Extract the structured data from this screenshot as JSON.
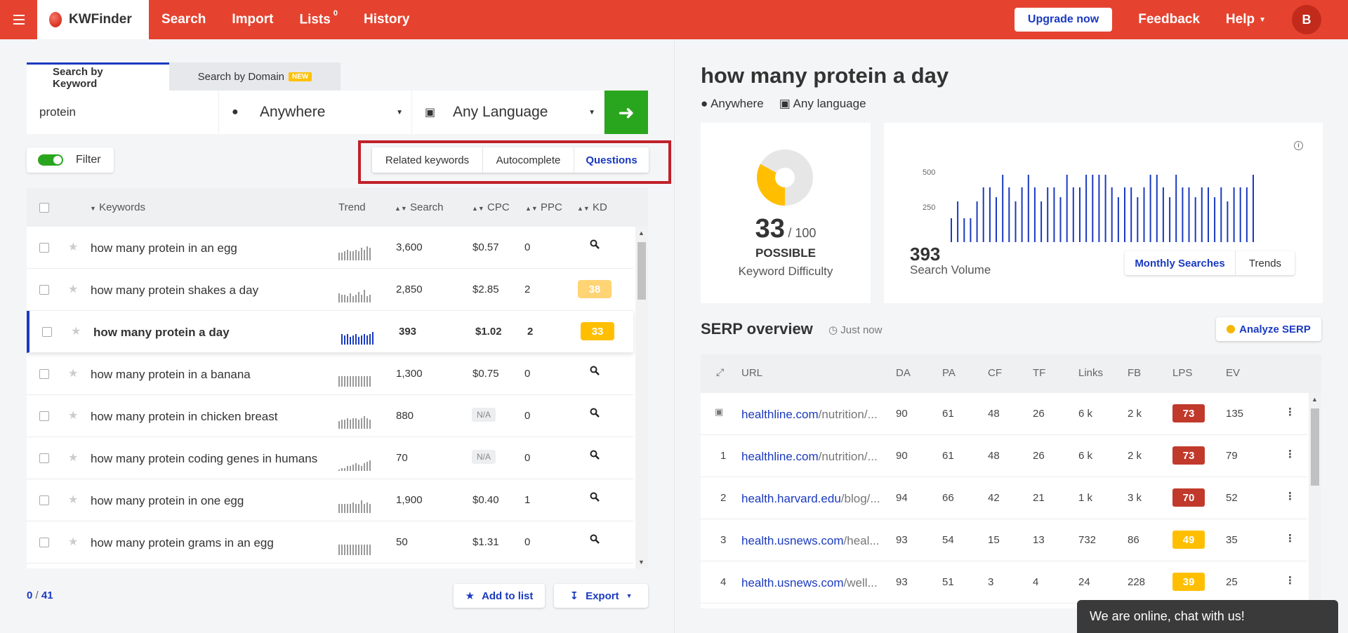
{
  "topbar": {
    "brand": "KWFinder",
    "nav": [
      {
        "label": "Search"
      },
      {
        "label": "Import"
      },
      {
        "label": "Lists",
        "badge": "0"
      },
      {
        "label": "History"
      }
    ],
    "upgrade": "Upgrade now",
    "feedback": "Feedback",
    "help": "Help",
    "avatar": "B"
  },
  "search": {
    "tabs": [
      {
        "label": "Search by Keyword"
      },
      {
        "label": "Search by Domain",
        "badge": "NEW"
      }
    ],
    "keyword": "protein",
    "location": "Anywhere",
    "language": "Any Language",
    "go_icon": "arrow-right-icon"
  },
  "filter": {
    "label": "Filter"
  },
  "modes": [
    {
      "label": "Related keywords"
    },
    {
      "label": "Autocomplete"
    },
    {
      "label": "Questions"
    }
  ],
  "kw_table": {
    "headers": [
      "Keywords",
      "Trend",
      "Search",
      "CPC",
      "PPC",
      "KD"
    ],
    "rows": [
      {
        "keyword": "how many protein in an egg",
        "search": "3,600",
        "cpc": "$0.57",
        "ppc": "0",
        "kd": null,
        "trend": [
          5,
          5,
          6,
          7,
          6,
          6,
          7,
          6,
          8,
          7,
          9,
          8
        ]
      },
      {
        "keyword": "how many protein shakes a day",
        "search": "2,850",
        "cpc": "$2.85",
        "ppc": "2",
        "kd": "38",
        "kd_color": "#ffd475",
        "trend": [
          6,
          5,
          5,
          4,
          6,
          4,
          5,
          7,
          5,
          8,
          4,
          5
        ]
      },
      {
        "keyword": "how many protein a day",
        "search": "393",
        "cpc": "$1.02",
        "ppc": "2",
        "kd": "33",
        "kd_color": "#ffbf00",
        "selected": true,
        "trend": [
          7,
          6,
          7,
          5,
          6,
          7,
          5,
          6,
          7,
          6,
          7,
          8
        ]
      },
      {
        "keyword": "how many protein in a banana",
        "search": "1,300",
        "cpc": "$0.75",
        "ppc": "0",
        "kd": null,
        "trend": [
          7,
          7,
          7,
          7,
          7,
          7,
          7,
          7,
          7,
          7,
          7,
          7
        ]
      },
      {
        "keyword": "how many protein in chicken breast",
        "search": "880",
        "cpc": "N/A",
        "ppc": "0",
        "kd": null,
        "trend": [
          5,
          6,
          6,
          7,
          6,
          7,
          7,
          6,
          7,
          8,
          7,
          6
        ]
      },
      {
        "keyword": "how many protein coding genes in humans",
        "search": "70",
        "cpc": "N/A",
        "ppc": "0",
        "kd": null,
        "trend": [
          1,
          2,
          2,
          3,
          3,
          4,
          5,
          4,
          3,
          5,
          6,
          7
        ]
      },
      {
        "keyword": "how many protein in one egg",
        "search": "1,900",
        "cpc": "$0.40",
        "ppc": "1",
        "kd": null,
        "trend": [
          6,
          6,
          6,
          6,
          6,
          7,
          6,
          6,
          8,
          6,
          7,
          6
        ]
      },
      {
        "keyword": "how many protein grams in an egg",
        "search": "50",
        "cpc": "$1.31",
        "ppc": "0",
        "kd": null,
        "trend": [
          7,
          7,
          7,
          7,
          7,
          7,
          7,
          7,
          7,
          7,
          7,
          7
        ]
      }
    ]
  },
  "footer": {
    "count_selected": "0",
    "count_total": "41",
    "add_to_list": "Add to list",
    "export": "Export"
  },
  "detail": {
    "title": "how many protein a day",
    "location": "Anywhere",
    "language": "Any language",
    "kd_score": "33",
    "kd_max": "/ 100",
    "kd_fraction": 0.33,
    "kd_level": "POSSIBLE",
    "kd_label": "Keyword Difficulty",
    "volume": "393",
    "volume_label": "Search Volume",
    "toggle_monthly": "Monthly Searches",
    "toggle_trends": "Trends"
  },
  "chart_data": {
    "type": "bar",
    "title": "",
    "yticks": [
      "500",
      "250"
    ],
    "ylim": [
      0,
      600
    ],
    "values": [
      170,
      290,
      170,
      170,
      290,
      390,
      390,
      320,
      480,
      390,
      290,
      390,
      480,
      390,
      290,
      390,
      390,
      320,
      480,
      390,
      390,
      480,
      480,
      480,
      480,
      390,
      320,
      390,
      390,
      320,
      390,
      480,
      480,
      390,
      320,
      480,
      390,
      390,
      320,
      390,
      390,
      320,
      390,
      290,
      390,
      390,
      390,
      480
    ]
  },
  "serp": {
    "title": "SERP overview",
    "time": "Just now",
    "analyze": "Analyze SERP",
    "headers": [
      "URL",
      "DA",
      "PA",
      "CF",
      "TF",
      "Links",
      "FB",
      "LPS",
      "EV"
    ],
    "rows": [
      {
        "pos": "",
        "domain": "healthline.com",
        "path": "/nutrition/...",
        "da": "90",
        "pa": "61",
        "cf": "48",
        "tf": "26",
        "links": "6 k",
        "fb": "2 k",
        "lps": "73",
        "lps_color": "#c0392b",
        "ev": "135"
      },
      {
        "pos": "1",
        "domain": "healthline.com",
        "path": "/nutrition/...",
        "da": "90",
        "pa": "61",
        "cf": "48",
        "tf": "26",
        "links": "6 k",
        "fb": "2 k",
        "lps": "73",
        "lps_color": "#c0392b",
        "ev": "79"
      },
      {
        "pos": "2",
        "domain": "health.harvard.edu",
        "path": "/blog/...",
        "da": "94",
        "pa": "66",
        "cf": "42",
        "tf": "21",
        "links": "1 k",
        "fb": "3 k",
        "lps": "70",
        "lps_color": "#c0392b",
        "ev": "52"
      },
      {
        "pos": "3",
        "domain": "health.usnews.com",
        "path": "/heal...",
        "da": "93",
        "pa": "54",
        "cf": "15",
        "tf": "13",
        "links": "732",
        "fb": "86",
        "lps": "49",
        "lps_color": "#ffbf00",
        "ev": "35"
      },
      {
        "pos": "4",
        "domain": "health.usnews.com",
        "path": "/well...",
        "da": "93",
        "pa": "51",
        "cf": "3",
        "tf": "4",
        "links": "24",
        "fb": "228",
        "lps": "39",
        "lps_color": "#ffbf00",
        "ev": "25"
      }
    ]
  },
  "chat": "We are online, chat with us!",
  "colors": {
    "brand": "#e5432f",
    "accent": "#1a3abf",
    "go": "#2aa61e"
  }
}
